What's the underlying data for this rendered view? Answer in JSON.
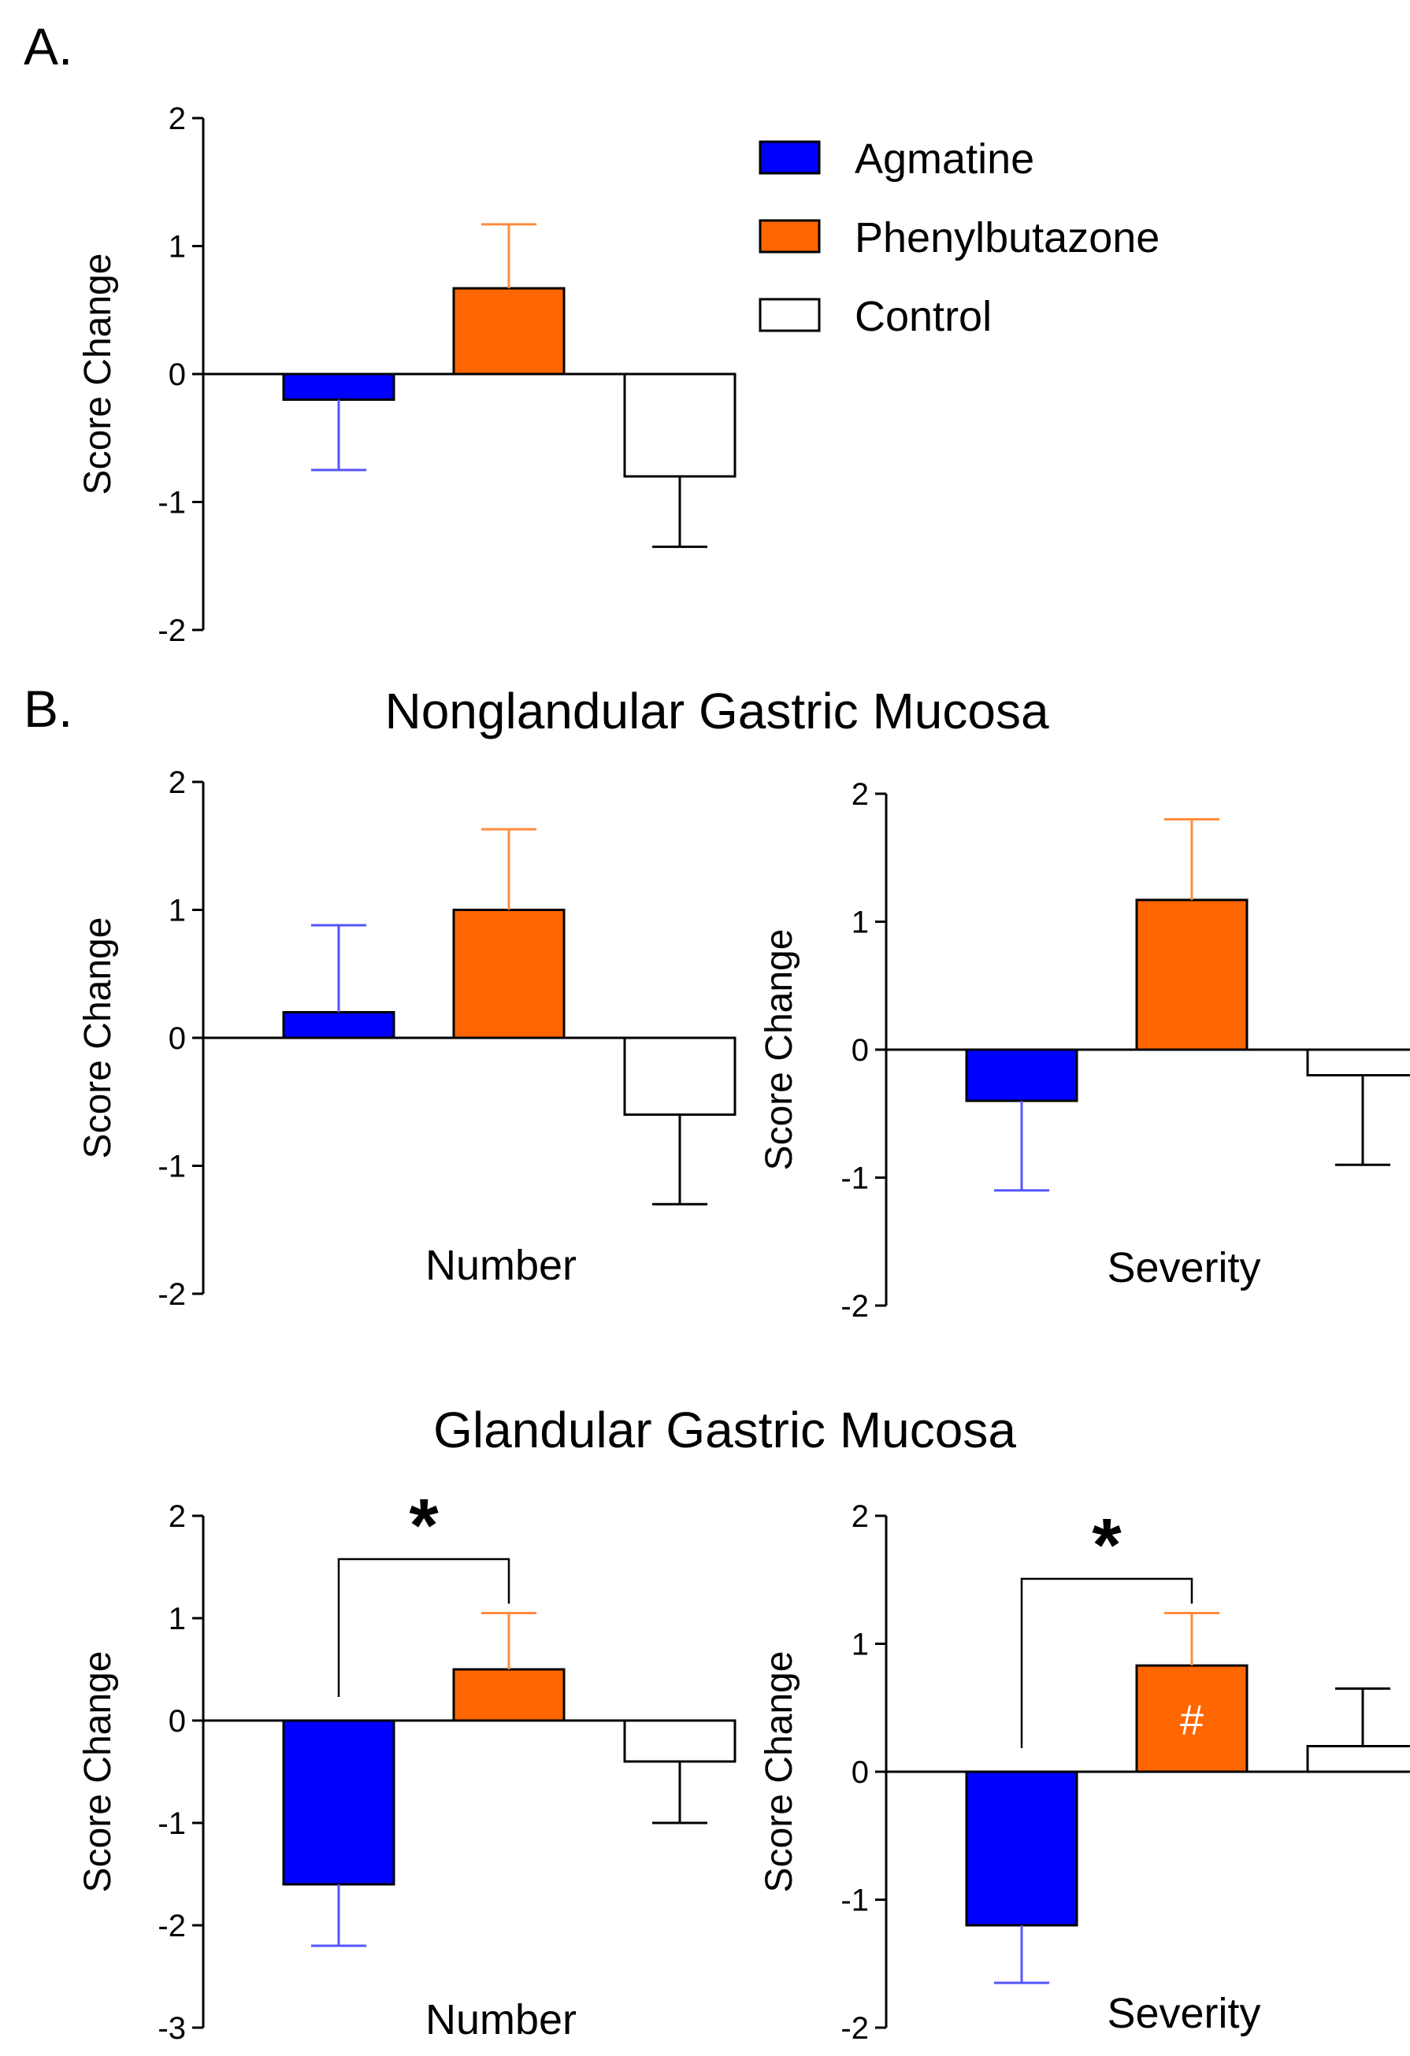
{
  "panel_labels": {
    "a": "A.",
    "b": "B."
  },
  "section_titles": {
    "nonglandular": "Nonglandular Gastric Mucosa",
    "glandular": "Glandular Gastric Mucosa"
  },
  "legend": [
    {
      "label": "Agmatine",
      "color": "#0000ff"
    },
    {
      "label": "Phenylbutazone",
      "color": "#ff6600"
    },
    {
      "label": "Control",
      "color": "#ffffff"
    }
  ],
  "colors": {
    "agmatine": "#0000ff",
    "agmatine_error": "#5555ff",
    "phenylbutazone": "#ff6600",
    "phenylbutazone_error": "#ff8c3c",
    "control": "#ffffff",
    "control_error": "#000000"
  },
  "chart_data": [
    {
      "id": "A",
      "type": "bar",
      "title": "",
      "xlabel": "",
      "ylabel": "Score Change",
      "ylim": [
        -2,
        2
      ],
      "yticks": [
        "2",
        "1",
        "0",
        "-1",
        "-2"
      ],
      "categories": [
        "Agmatine",
        "Phenylbutazone",
        "Control"
      ],
      "values": [
        -0.2,
        0.67,
        -0.8
      ],
      "errors": [
        0.55,
        0.5,
        0.55
      ],
      "annotations": []
    },
    {
      "id": "B-nonglandular-number",
      "type": "bar",
      "title": "",
      "xlabel": "Number",
      "ylabel": "Score Change",
      "ylim": [
        -2,
        2
      ],
      "yticks": [
        "2",
        "1",
        "0",
        "-1",
        "-2"
      ],
      "categories": [
        "Agmatine",
        "Phenylbutazone",
        "Control"
      ],
      "values": [
        0.2,
        1.0,
        -0.6
      ],
      "errors": [
        0.68,
        0.63,
        0.7
      ],
      "annotations": []
    },
    {
      "id": "B-nonglandular-severity",
      "type": "bar",
      "title": "",
      "xlabel": "Severity",
      "ylabel": "Score Change",
      "ylim": [
        -2,
        2
      ],
      "yticks": [
        "2",
        "1",
        "0",
        "-1",
        "-2"
      ],
      "categories": [
        "Agmatine",
        "Phenylbutazone",
        "Control"
      ],
      "values": [
        -0.4,
        1.17,
        -0.2
      ],
      "errors": [
        0.7,
        0.63,
        0.7
      ],
      "annotations": []
    },
    {
      "id": "B-glandular-number",
      "type": "bar",
      "title": "",
      "xlabel": "Number",
      "ylabel": "Score Change",
      "ylim": [
        -3,
        2
      ],
      "yticks": [
        "2",
        "1",
        "0",
        "-1",
        "-2",
        "-3"
      ],
      "categories": [
        "Agmatine",
        "Phenylbutazone",
        "Control"
      ],
      "values": [
        -1.6,
        0.5,
        -0.4
      ],
      "errors": [
        0.6,
        0.55,
        0.6
      ],
      "annotations": [
        {
          "type": "bracket",
          "from": 0,
          "to": 1,
          "label": "*"
        }
      ]
    },
    {
      "id": "B-glandular-severity",
      "type": "bar",
      "title": "",
      "xlabel": "Severity",
      "ylabel": "Score Change",
      "ylim": [
        -2,
        2
      ],
      "yticks": [
        "2",
        "1",
        "0",
        "-1",
        "-2"
      ],
      "categories": [
        "Agmatine",
        "Phenylbutazone",
        "Control"
      ],
      "values": [
        -1.2,
        0.83,
        0.2
      ],
      "errors": [
        0.45,
        0.41,
        0.45
      ],
      "annotations": [
        {
          "type": "bracket",
          "from": 0,
          "to": 1,
          "label": "*"
        },
        {
          "type": "bar-label",
          "bar": 1,
          "label": "#"
        }
      ]
    }
  ]
}
